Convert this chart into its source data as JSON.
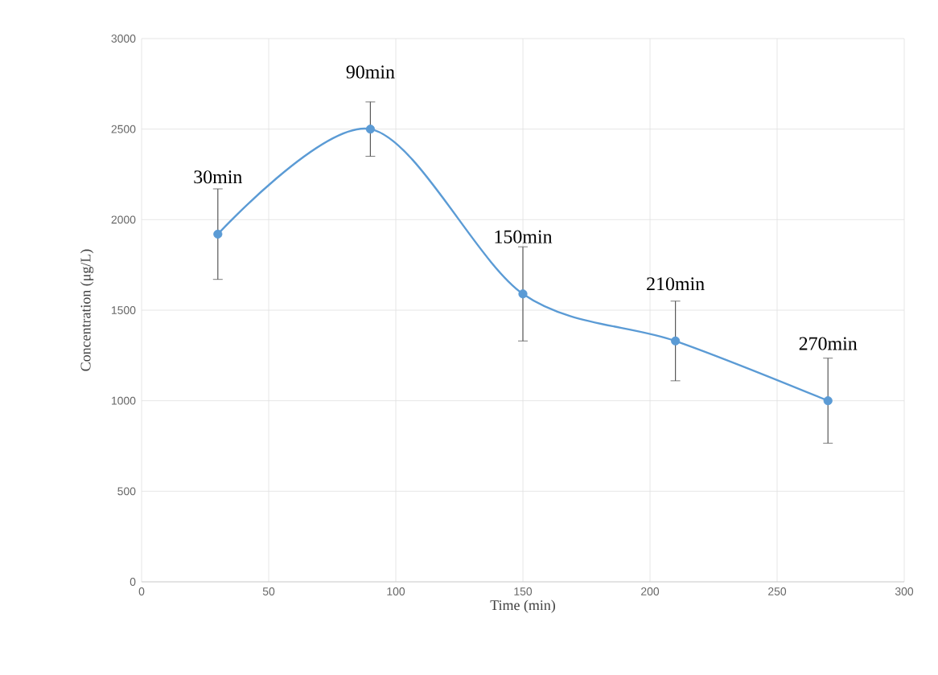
{
  "chart_data": {
    "type": "line",
    "xlabel": "Time (min)",
    "ylabel": "Concentration (μg/L)",
    "x": [
      30,
      90,
      150,
      210,
      270
    ],
    "series": [
      {
        "color": "#5b9bd5",
        "values": [
          1920,
          2500,
          1590,
          1330,
          1000
        ],
        "errors": [
          250,
          150,
          260,
          220,
          235
        ]
      }
    ],
    "xlim": [
      0,
      300
    ],
    "xticks": [
      0,
      50,
      100,
      150,
      200,
      250,
      300
    ],
    "ylim": [
      0,
      3000
    ],
    "yticks": [
      0,
      500,
      1000,
      1500,
      2000,
      2500,
      3000
    ],
    "grid": true,
    "marker": "circle",
    "line_style": "solid",
    "annotations": [
      {
        "text": "30min",
        "x": 30,
        "y": 1920
      },
      {
        "text": "90min",
        "x": 90,
        "y": 2500
      },
      {
        "text": "150min",
        "x": 150,
        "y": 1590
      },
      {
        "text": "210min",
        "x": 210,
        "y": 1330
      },
      {
        "text": "270min",
        "x": 270,
        "y": 1000
      }
    ]
  }
}
